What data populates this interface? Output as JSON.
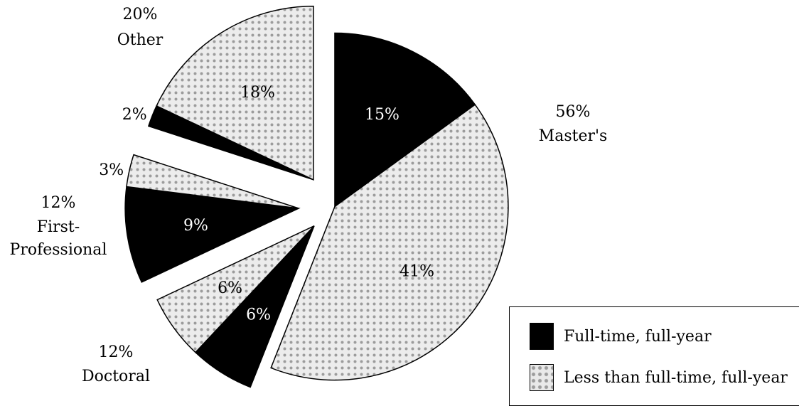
{
  "chart_data": {
    "type": "pie",
    "categories": [
      "Master's",
      "Doctoral",
      "First-Professional",
      "Other"
    ],
    "category_labels": [
      {
        "pct": "56%",
        "name": "Master's"
      },
      {
        "pct": "12%",
        "name": "Doctoral"
      },
      {
        "pct": "12%",
        "name_line1": "First-",
        "name_line2": "Professional"
      },
      {
        "pct": "20%",
        "name": "Other"
      }
    ],
    "series": [
      {
        "name": "Full-time, full-year",
        "values": [
          15,
          6,
          9,
          2
        ],
        "labels": [
          "15%",
          "6%",
          "9%",
          "2%"
        ],
        "color": "#000000"
      },
      {
        "name": "Less than full-time, full-year",
        "values": [
          41,
          6,
          3,
          18
        ],
        "labels": [
          "41%",
          "6%",
          "3%",
          "18%"
        ],
        "color": "#e9e9e9"
      }
    ],
    "exploded": true,
    "legend": [
      "Full-time, full-year",
      "Less than full-time, full-year"
    ],
    "legend_position": "bottom-right"
  }
}
